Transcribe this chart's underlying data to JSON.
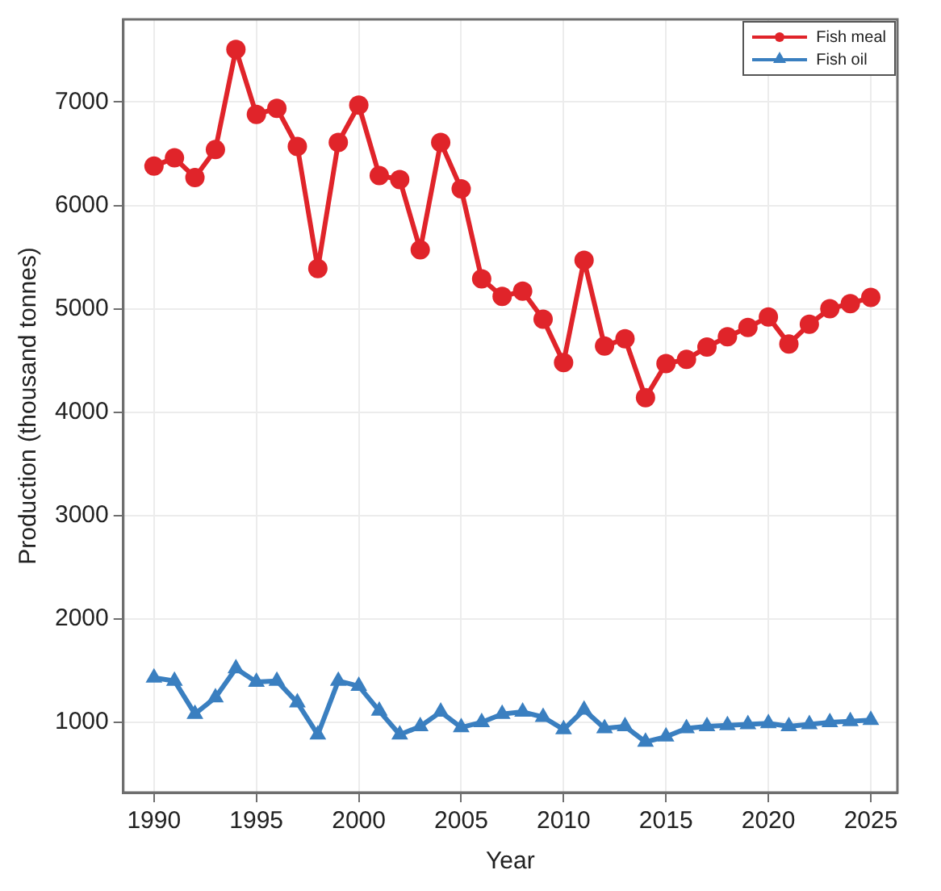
{
  "chart_data": {
    "type": "line",
    "xlabel": "Year",
    "ylabel": "Production (thousand tonnes)",
    "x": [
      1990,
      1991,
      1992,
      1993,
      1994,
      1995,
      1996,
      1997,
      1998,
      1999,
      2000,
      2001,
      2002,
      2003,
      2004,
      2005,
      2006,
      2007,
      2008,
      2009,
      2010,
      2011,
      2012,
      2013,
      2014,
      2015,
      2016,
      2017,
      2018,
      2019,
      2020,
      2021,
      2022,
      2023,
      2024,
      2025
    ],
    "series": [
      {
        "name": "Fish meal",
        "color": "#e0242a",
        "marker": "circle",
        "values": [
          6380,
          6460,
          6270,
          6540,
          7510,
          6880,
          6940,
          6570,
          5390,
          6610,
          6970,
          6290,
          6250,
          5570,
          6610,
          6160,
          5290,
          5120,
          5170,
          4900,
          4480,
          5470,
          4640,
          4710,
          4140,
          4470,
          4510,
          4630,
          4730,
          4820,
          4920,
          4660,
          4850,
          5000,
          5050,
          5110
        ]
      },
      {
        "name": "Fish oil",
        "color": "#3a7fc0",
        "marker": "triangle",
        "values": [
          1430,
          1400,
          1080,
          1240,
          1520,
          1390,
          1400,
          1190,
          880,
          1400,
          1350,
          1110,
          880,
          960,
          1100,
          950,
          1000,
          1080,
          1100,
          1050,
          930,
          1120,
          940,
          960,
          810,
          860,
          940,
          960,
          970,
          980,
          990,
          960,
          980,
          1000,
          1010,
          1020
        ]
      }
    ],
    "xlim": [
      1988.5,
      2026.3
    ],
    "xticks": [
      1990,
      1995,
      2000,
      2005,
      2010,
      2015,
      2020,
      2025
    ],
    "ylim": [
      320,
      7800
    ],
    "yticks": [
      1000,
      2000,
      3000,
      4000,
      5000,
      6000,
      7000
    ],
    "grid": true,
    "legend": "top right",
    "line_style": "solid"
  }
}
